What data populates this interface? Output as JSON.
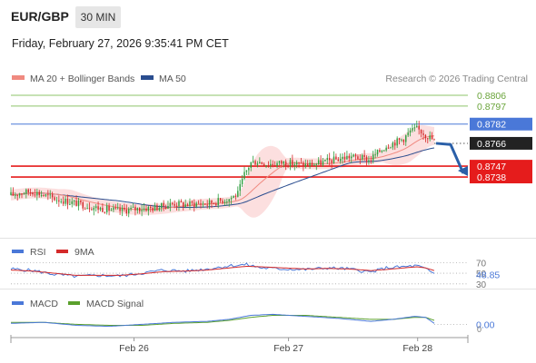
{
  "header": {
    "symbol": "EUR/GBP",
    "timeframe": "30 MIN",
    "datetime": "Friday, February 27, 2026 9:35:41 PM CET"
  },
  "legend": {
    "ma20_label": "MA 20 + Bollinger Bands",
    "ma50_label": "MA 50",
    "ma20_color": "#f08a80",
    "ma50_color": "#2a4d8f",
    "credit": "Research © 2026 Trading Central"
  },
  "colors": {
    "candle_up": "#2e9e3e",
    "candle_down": "#d42a2a",
    "band_fill": "#fbd9d9",
    "resistance_green": "#8dc46a",
    "pivot_blue": "#4a78d8",
    "support_red": "#e51c1c",
    "current_price_tag": "#222222",
    "arrow": "#2a5fa8",
    "rsi_line": "#4a78d8",
    "rsi_ma_line": "#d42a2a",
    "macd_line": "#4a78d8",
    "macd_signal_line": "#5aa02c"
  },
  "chart_data": [
    {
      "type": "candlestick",
      "panel": "price",
      "y_range": [
        0.8695,
        0.8812
      ],
      "levels": [
        {
          "label": "0.8806",
          "value": 0.8806,
          "color": "#6aa43a",
          "tag": "text"
        },
        {
          "label": "0.8797",
          "value": 0.8797,
          "color": "#6aa43a",
          "tag": "text"
        },
        {
          "label": "0.8782",
          "value": 0.8782,
          "color": "#4a78d8",
          "tag": "box"
        },
        {
          "label": "0.8766",
          "value": 0.8766,
          "color": "#222222",
          "tag": "box",
          "current": true
        },
        {
          "label": "0.8747",
          "value": 0.8747,
          "color": "#e51c1c",
          "tag": "box"
        },
        {
          "label": "0.8738",
          "value": 0.8738,
          "color": "#e51c1c",
          "tag": "box"
        }
      ],
      "close_path": [
        [
          0,
          0.8723
        ],
        [
          5,
          0.8725
        ],
        [
          10,
          0.8726
        ],
        [
          15,
          0.8723
        ],
        [
          20,
          0.872
        ],
        [
          25,
          0.8718
        ],
        [
          30,
          0.8716
        ],
        [
          35,
          0.8714
        ],
        [
          40,
          0.8712
        ],
        [
          45,
          0.8711
        ],
        [
          50,
          0.871
        ],
        [
          55,
          0.8711
        ],
        [
          60,
          0.8712
        ],
        [
          65,
          0.8712
        ],
        [
          70,
          0.8714
        ],
        [
          75,
          0.8716
        ],
        [
          80,
          0.8715
        ],
        [
          85,
          0.8716
        ],
        [
          90,
          0.8716
        ],
        [
          95,
          0.8718
        ],
        [
          100,
          0.872
        ],
        [
          104,
          0.8724
        ],
        [
          107,
          0.874
        ],
        [
          110,
          0.875
        ],
        [
          113,
          0.8751
        ],
        [
          117,
          0.8749
        ],
        [
          121,
          0.8749
        ],
        [
          125,
          0.875
        ],
        [
          130,
          0.8749
        ],
        [
          135,
          0.8748
        ],
        [
          140,
          0.8749
        ],
        [
          145,
          0.8751
        ],
        [
          150,
          0.8753
        ],
        [
          155,
          0.8755
        ],
        [
          160,
          0.8754
        ],
        [
          164,
          0.8752
        ],
        [
          168,
          0.8758
        ],
        [
          172,
          0.8764
        ],
        [
          176,
          0.8767
        ],
        [
          180,
          0.877
        ],
        [
          183,
          0.8776
        ],
        [
          186,
          0.8778
        ],
        [
          188,
          0.8776
        ],
        [
          190,
          0.8773
        ],
        [
          192,
          0.8771
        ],
        [
          194,
          0.8768
        ]
      ],
      "x_ticks": [
        {
          "label": "Feb 26",
          "pos": 0.265
        },
        {
          "label": "Feb 27",
          "pos": 0.63
        },
        {
          "label": "Feb 28",
          "pos": 0.935
        }
      ],
      "forecast_arrow": {
        "from": 0.8766,
        "via": 0.8765,
        "to": 0.8738
      }
    },
    {
      "type": "line",
      "panel": "rsi",
      "series": [
        {
          "name": "RSI"
        },
        {
          "name": "9MA"
        }
      ],
      "y_range": [
        28,
        74
      ],
      "levels": [
        {
          "label": "70",
          "value": 70
        },
        {
          "label": "50",
          "value": 50
        },
        {
          "label": "30",
          "value": 30
        }
      ],
      "current_value": "48.85",
      "rsi_path": [
        [
          0,
          58
        ],
        [
          10,
          55
        ],
        [
          20,
          48
        ],
        [
          30,
          44
        ],
        [
          40,
          46
        ],
        [
          50,
          45
        ],
        [
          60,
          50
        ],
        [
          70,
          56
        ],
        [
          80,
          54
        ],
        [
          90,
          58
        ],
        [
          100,
          64
        ],
        [
          108,
          66
        ],
        [
          115,
          60
        ],
        [
          125,
          58
        ],
        [
          135,
          57
        ],
        [
          145,
          60
        ],
        [
          155,
          58
        ],
        [
          165,
          52
        ],
        [
          172,
          60
        ],
        [
          180,
          62
        ],
        [
          186,
          64
        ],
        [
          190,
          58
        ],
        [
          194,
          49
        ]
      ],
      "ma_path": [
        [
          0,
          56
        ],
        [
          10,
          54
        ],
        [
          20,
          50
        ],
        [
          30,
          46
        ],
        [
          40,
          46
        ],
        [
          50,
          46
        ],
        [
          60,
          49
        ],
        [
          70,
          53
        ],
        [
          80,
          54
        ],
        [
          90,
          56
        ],
        [
          100,
          60
        ],
        [
          108,
          63
        ],
        [
          115,
          62
        ],
        [
          125,
          60
        ],
        [
          135,
          58
        ],
        [
          145,
          59
        ],
        [
          155,
          58
        ],
        [
          165,
          55
        ],
        [
          172,
          57
        ],
        [
          180,
          60
        ],
        [
          186,
          62
        ],
        [
          190,
          60
        ],
        [
          194,
          55
        ]
      ]
    },
    {
      "type": "line",
      "panel": "macd",
      "series": [
        {
          "name": "MACD"
        },
        {
          "name": "MACD Signal"
        }
      ],
      "y_range": [
        -0.0006,
        0.0014
      ],
      "levels": [
        {
          "label": "0.00",
          "value": 0
        }
      ],
      "bottom_label": "0",
      "macd_path": [
        [
          0,
          0.0001
        ],
        [
          15,
          0.0002
        ],
        [
          30,
          -0.0001
        ],
        [
          45,
          -0.0002
        ],
        [
          60,
          0.0
        ],
        [
          75,
          0.0002
        ],
        [
          90,
          0.0003
        ],
        [
          100,
          0.0005
        ],
        [
          110,
          0.0009
        ],
        [
          120,
          0.001
        ],
        [
          135,
          0.0008
        ],
        [
          150,
          0.0006
        ],
        [
          165,
          0.0003
        ],
        [
          175,
          0.0005
        ],
        [
          185,
          0.0008
        ],
        [
          190,
          0.0007
        ],
        [
          194,
          0.0001
        ]
      ],
      "signal_path": [
        [
          0,
          0.0002
        ],
        [
          15,
          0.0002
        ],
        [
          30,
          0.0
        ],
        [
          45,
          -0.0001
        ],
        [
          60,
          -0.0001
        ],
        [
          75,
          0.0001
        ],
        [
          90,
          0.0002
        ],
        [
          100,
          0.0004
        ],
        [
          110,
          0.0007
        ],
        [
          120,
          0.0009
        ],
        [
          135,
          0.0009
        ],
        [
          150,
          0.0007
        ],
        [
          165,
          0.0005
        ],
        [
          175,
          0.0005
        ],
        [
          185,
          0.0007
        ],
        [
          190,
          0.0007
        ],
        [
          194,
          0.0004
        ]
      ]
    }
  ]
}
